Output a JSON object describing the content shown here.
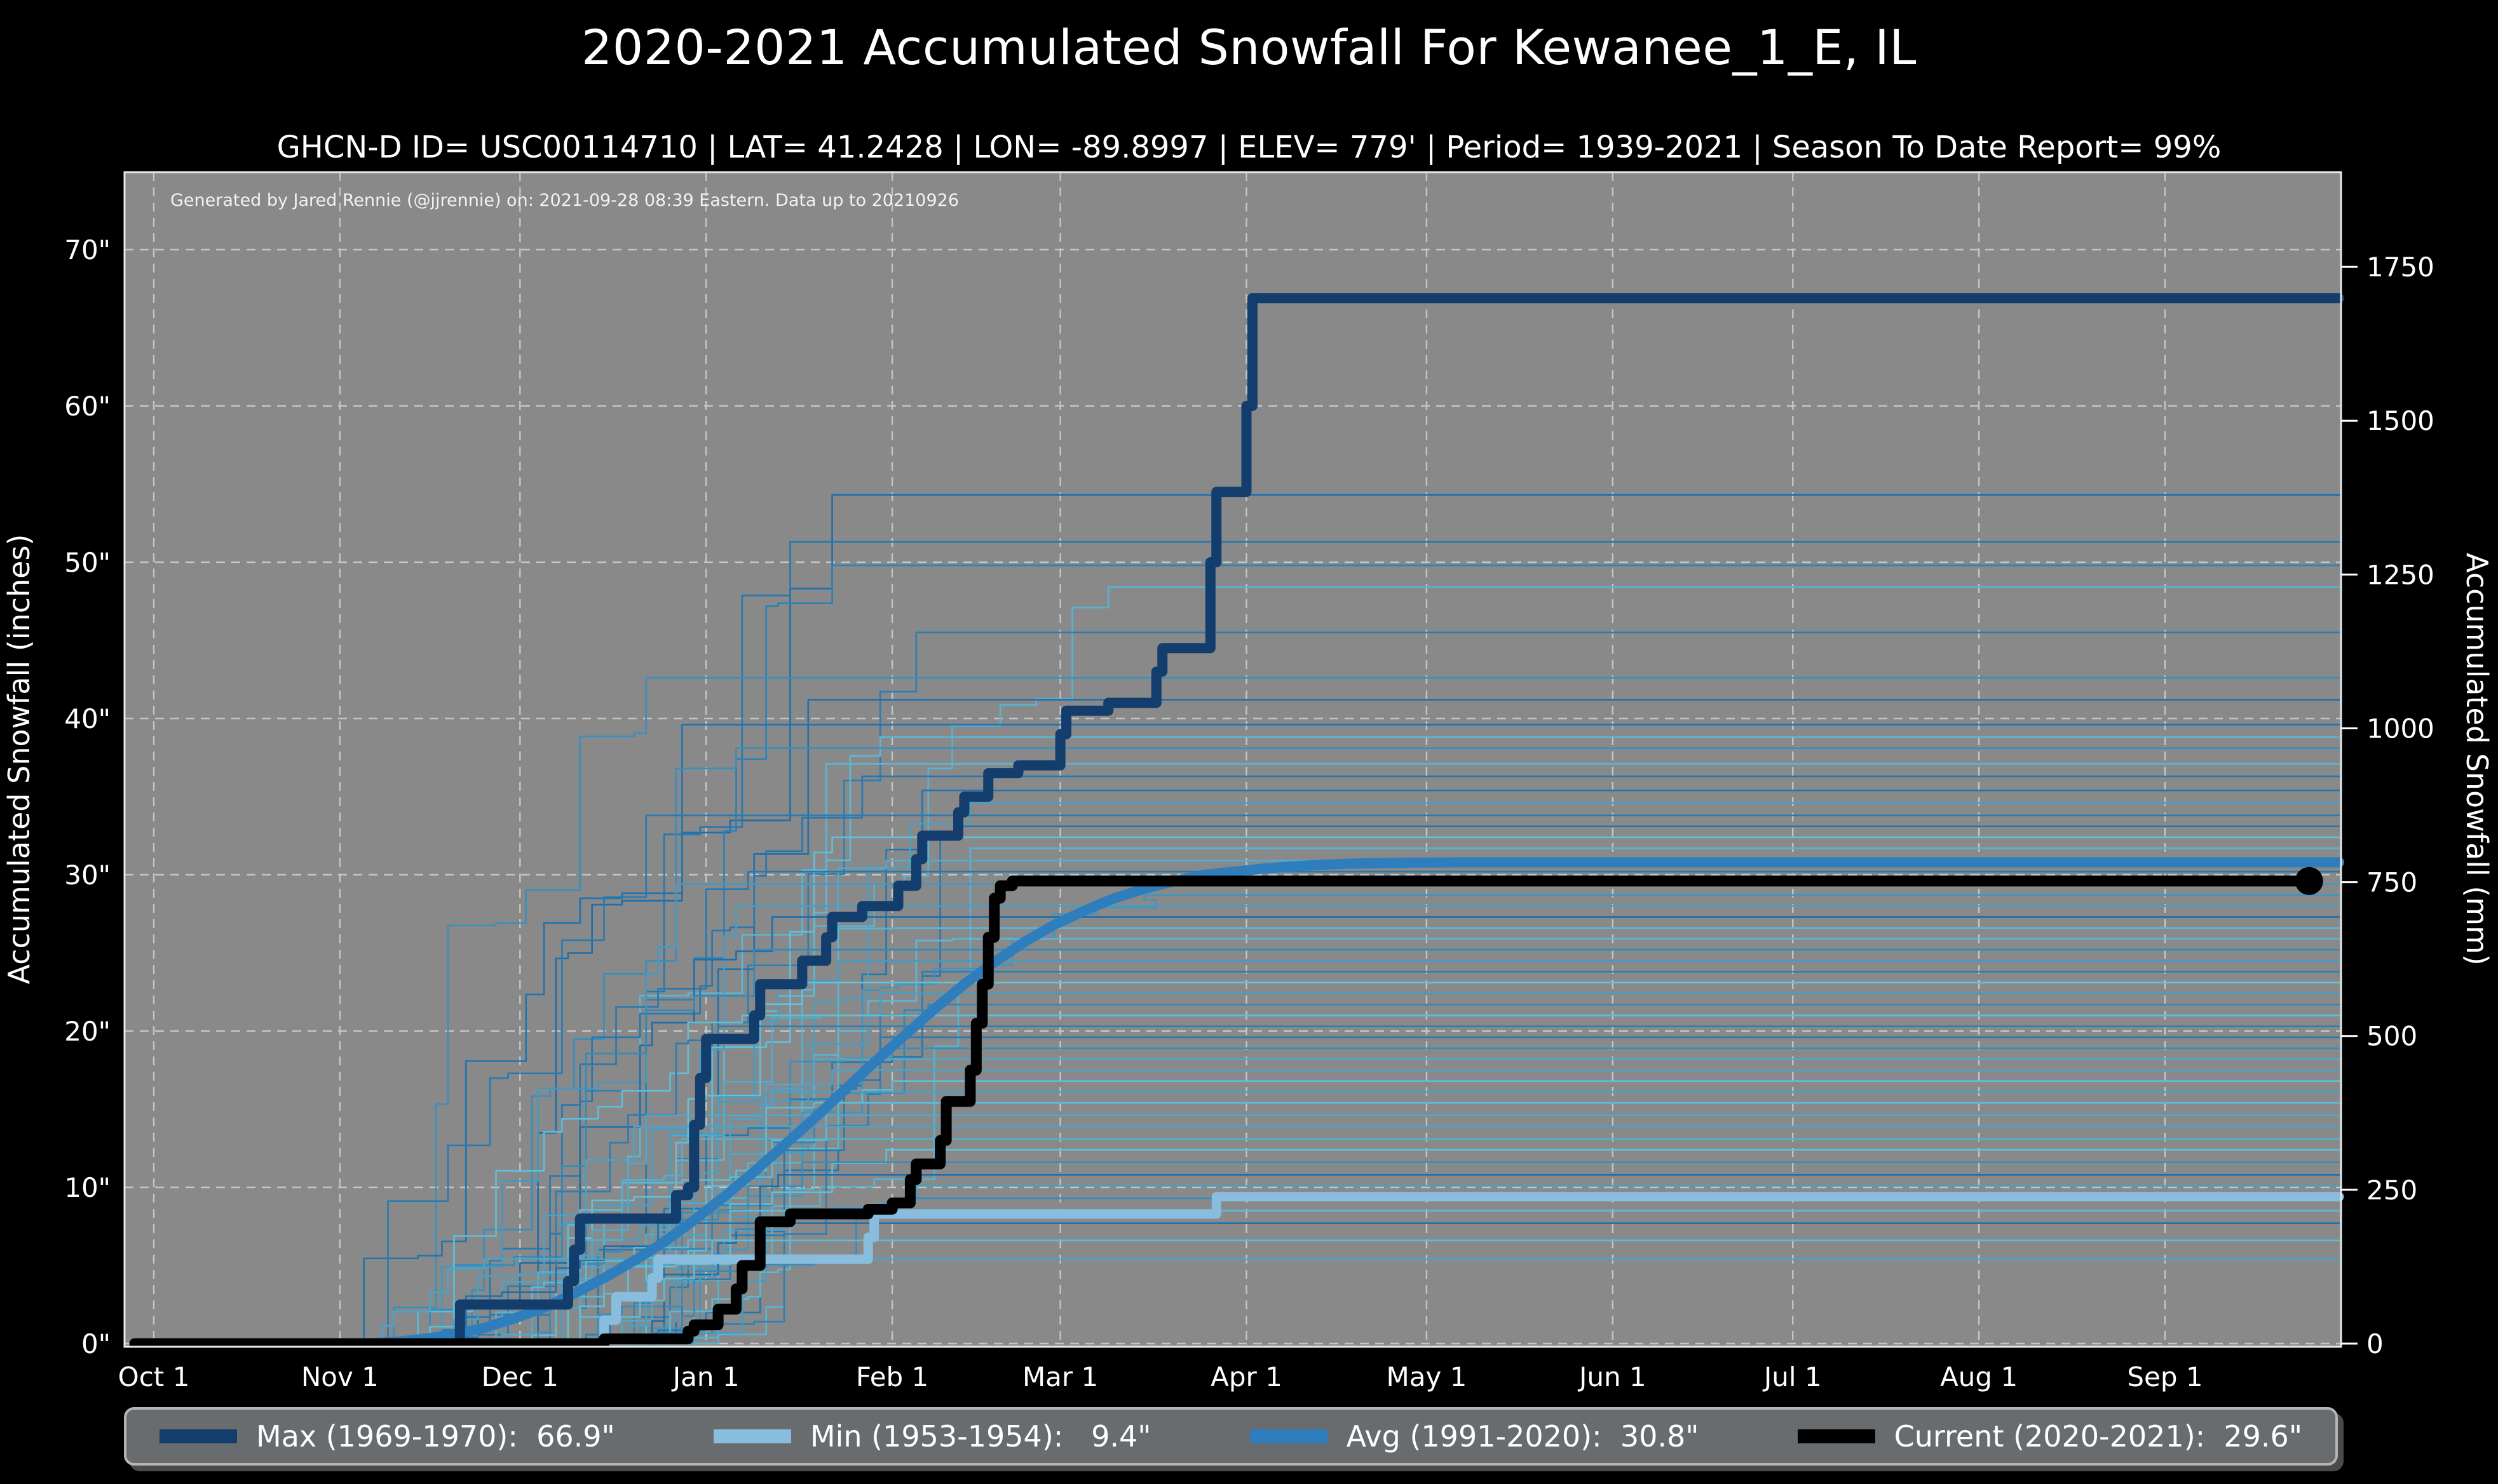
{
  "header": {
    "title": "2020-2021 Accumulated Snowfall For Kewanee_1_E, IL",
    "subtitle": "GHCN-D ID= USC00114710 | LAT= 41.2428 | LON= -89.8997 | ELEV= 779' | Period= 1939-2021 | Season To Date Report= 99%"
  },
  "annotation": "Generated by Jared Rennie (@jjrennie) on: 2021-09-28 08:39 Eastern. Data up to 20210926",
  "legend": {
    "items": [
      {
        "text": "Max (1969-1970):  66.9\"",
        "color": "#123d6d"
      },
      {
        "text": "Min (1953-1954):   9.4\"",
        "color": "#88bdde"
      },
      {
        "text": "Avg (1991-2020):  30.8\"",
        "color": "#2e7dbd"
      },
      {
        "text": "Current (2020-2021):  29.6\"",
        "color": "#000000"
      }
    ]
  },
  "chart_data": {
    "type": "line",
    "title": "2020-2021 Accumulated Snowfall For Kewanee_1_E, IL",
    "x_axis": {
      "tick_labels": [
        "Oct 1",
        "Nov 1",
        "Dec 1",
        "Jan 1",
        "Feb 1",
        "Mar 1",
        "Apr 1",
        "May 1",
        "Jun 1",
        "Jul 1",
        "Aug 1",
        "Sep 1"
      ],
      "tick_days": [
        0,
        31,
        61,
        92,
        123,
        151,
        182,
        212,
        243,
        273,
        304,
        335
      ],
      "season_length_days": 365
    },
    "y_axis_left": {
      "label": "Accumulated Snowfall (inches)",
      "ticks": [
        0,
        10,
        20,
        30,
        40,
        50,
        60,
        70
      ],
      "tick_labels": [
        "0\"",
        "10\"",
        "20\"",
        "30\"",
        "40\"",
        "50\"",
        "60\"",
        "70\""
      ],
      "range_inches": [
        -0.2,
        75.2
      ]
    },
    "y_axis_right": {
      "label": "Accumulated Snowfall (mm)",
      "ticks": [
        0,
        250,
        500,
        750,
        1000,
        1250,
        1500,
        1750
      ],
      "tick_labels": [
        "0",
        "250",
        "500",
        "750",
        "1000",
        "1250",
        "1500",
        "1750"
      ]
    },
    "grid": {
      "show": true,
      "style": "dashed",
      "color": "#d9d9d9"
    },
    "legend_position": "bottom",
    "series": [
      {
        "name": "Max (1969-1970)",
        "total_inches": 66.9,
        "color": "#123d6d",
        "width": 16,
        "style": "step",
        "points": [
          [
            0,
            0
          ],
          [
            50,
            0
          ],
          [
            51,
            2.5
          ],
          [
            68,
            2.5
          ],
          [
            69,
            4
          ],
          [
            70,
            6
          ],
          [
            71,
            8
          ],
          [
            86,
            8
          ],
          [
            87,
            9.5
          ],
          [
            89,
            10
          ],
          [
            90,
            14
          ],
          [
            91,
            17
          ],
          [
            92,
            19.5
          ],
          [
            99,
            19.5
          ],
          [
            100,
            21
          ],
          [
            101,
            23
          ],
          [
            107,
            23
          ],
          [
            108,
            24.5
          ],
          [
            111,
            24.5
          ],
          [
            112,
            26
          ],
          [
            113,
            27.3
          ],
          [
            117,
            27.3
          ],
          [
            118,
            28
          ],
          [
            123,
            28
          ],
          [
            124,
            29.3
          ],
          [
            126,
            29.3
          ],
          [
            127,
            31
          ],
          [
            128,
            32.5
          ],
          [
            133,
            32.5
          ],
          [
            134,
            34
          ],
          [
            135,
            35
          ],
          [
            138,
            35
          ],
          [
            139,
            36.5
          ],
          [
            143,
            36.5
          ],
          [
            144,
            37
          ],
          [
            150,
            37
          ],
          [
            151,
            39
          ],
          [
            152,
            40.5
          ],
          [
            158,
            40.5
          ],
          [
            159,
            41
          ],
          [
            166,
            41
          ],
          [
            167,
            43
          ],
          [
            168,
            44.5
          ],
          [
            175,
            44.5
          ],
          [
            176,
            50
          ],
          [
            177,
            54.5
          ],
          [
            181,
            54.5
          ],
          [
            182,
            60
          ],
          [
            183,
            66.9
          ],
          [
            364,
            66.9
          ]
        ]
      },
      {
        "name": "Min (1953-1954)",
        "total_inches": 9.4,
        "color": "#88bdde",
        "width": 15,
        "style": "step",
        "points": [
          [
            0,
            0
          ],
          [
            74,
            0
          ],
          [
            75,
            1.5
          ],
          [
            76,
            1.5
          ],
          [
            77,
            3
          ],
          [
            82,
            3
          ],
          [
            83,
            4.2
          ],
          [
            84,
            5.4
          ],
          [
            118,
            5.4
          ],
          [
            119,
            6.8
          ],
          [
            120,
            8.3
          ],
          [
            176,
            8.3
          ],
          [
            177,
            9.4
          ],
          [
            364,
            9.4
          ]
        ]
      },
      {
        "name": "Avg (1991-2020)",
        "total_inches": 30.8,
        "color": "#2e7dbd",
        "width": 16,
        "style": "smooth",
        "points": [
          [
            0,
            0
          ],
          [
            35,
            0
          ],
          [
            40,
            0.1
          ],
          [
            45,
            0.3
          ],
          [
            50,
            0.6
          ],
          [
            55,
            1.0
          ],
          [
            60,
            1.6
          ],
          [
            65,
            2.3
          ],
          [
            70,
            3.2
          ],
          [
            75,
            4.2
          ],
          [
            80,
            5.3
          ],
          [
            85,
            6.5
          ],
          [
            90,
            7.9
          ],
          [
            95,
            9.4
          ],
          [
            100,
            11.0
          ],
          [
            105,
            12.7
          ],
          [
            110,
            14.4
          ],
          [
            115,
            16.2
          ],
          [
            120,
            18.0
          ],
          [
            125,
            19.7
          ],
          [
            130,
            21.4
          ],
          [
            135,
            23.0
          ],
          [
            140,
            24.4
          ],
          [
            145,
            25.7
          ],
          [
            150,
            26.8
          ],
          [
            155,
            27.7
          ],
          [
            160,
            28.5
          ],
          [
            165,
            29.1
          ],
          [
            170,
            29.6
          ],
          [
            175,
            30.0
          ],
          [
            180,
            30.2
          ],
          [
            185,
            30.4
          ],
          [
            190,
            30.55
          ],
          [
            195,
            30.65
          ],
          [
            200,
            30.72
          ],
          [
            210,
            30.78
          ],
          [
            220,
            30.8
          ],
          [
            364,
            30.8
          ]
        ]
      },
      {
        "name": "Current (2020-2021)",
        "total_inches": 29.6,
        "color": "#000000",
        "width": 17,
        "style": "step",
        "end_marker": "dot",
        "end_day": 359,
        "points": [
          [
            0,
            0
          ],
          [
            74,
            0
          ],
          [
            75,
            0.3
          ],
          [
            88,
            0.3
          ],
          [
            89,
            0.8
          ],
          [
            90,
            1.2
          ],
          [
            93,
            1.2
          ],
          [
            94,
            2.2
          ],
          [
            96,
            2.2
          ],
          [
            97,
            3.5
          ],
          [
            98,
            5
          ],
          [
            100,
            5
          ],
          [
            101,
            7.8
          ],
          [
            105,
            7.8
          ],
          [
            106,
            8.3
          ],
          [
            118,
            8.3
          ],
          [
            119,
            8.6
          ],
          [
            122,
            8.6
          ],
          [
            123,
            9
          ],
          [
            125,
            9
          ],
          [
            126,
            10.5
          ],
          [
            127,
            11.5
          ],
          [
            130,
            11.5
          ],
          [
            131,
            13
          ],
          [
            132,
            15.5
          ],
          [
            135,
            15.5
          ],
          [
            136,
            17.5
          ],
          [
            137,
            20.5
          ],
          [
            138,
            23
          ],
          [
            139,
            26
          ],
          [
            140,
            28.5
          ],
          [
            141,
            29.3
          ],
          [
            142,
            29.3
          ],
          [
            143,
            29.6
          ],
          [
            359,
            29.6
          ]
        ]
      }
    ],
    "background_ensemble": {
      "description": "Individual seasons 1939-2021 shown as thin step lines (approximate end-of-season totals read from right edge)",
      "color_range": [
        "#1a6cab",
        "#62c4dc"
      ],
      "width": 2.6,
      "seed": 20210928,
      "season_totals_inches": [
        54.3,
        51.3,
        49.8,
        48.4,
        45.5,
        42.6,
        41.2,
        39.6,
        38.8,
        38.1,
        37.1,
        36.3,
        35.4,
        34.6,
        33.8,
        33.1,
        32.4,
        31.7,
        30.9,
        30.2,
        29.4,
        28.7,
        28.0,
        27.3,
        26.6,
        25.9,
        25.2,
        24.5,
        23.8,
        23.1,
        22.4,
        21.7,
        21.0,
        20.3,
        19.6,
        18.9,
        18.2,
        17.5,
        16.8,
        16.1,
        15.4,
        14.6,
        13.9,
        13.1,
        12.4,
        11.6,
        10.8,
        10.1,
        9.3,
        8.5,
        7.7,
        6.6,
        5.4
      ]
    },
    "colors": {
      "figure_bg": "#000000",
      "plot_bg": "#898989",
      "grid": "#d9d9d9",
      "spine": "#e8e8e8",
      "text": "#ffffff"
    }
  }
}
